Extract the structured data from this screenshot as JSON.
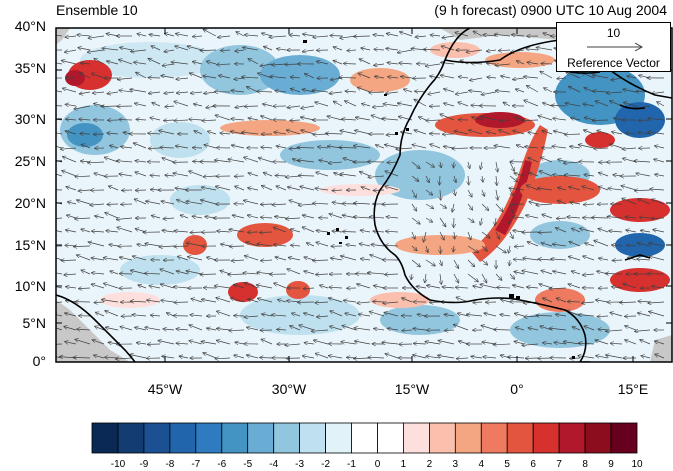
{
  "title_left": "Ensemble 10",
  "title_right": "(9 h forecast) 0900 UTC 10 Aug 2004",
  "lat_labels": [
    "40°N",
    "35°N",
    "30°N",
    "25°N",
    "20°N",
    "15°N",
    "10°N",
    "5°N",
    "0°"
  ],
  "lon_labels": [
    "45°W",
    "30°W",
    "15°W",
    "0°",
    "15°E"
  ],
  "reference_vector": {
    "magnitude": "10",
    "label": "Reference Vector"
  },
  "colorbar": {
    "labels": [
      "-10",
      "-9",
      "-8",
      "-7",
      "-6",
      "-5",
      "-4",
      "-3",
      "-2",
      "-1",
      "0",
      "1",
      "2",
      "3",
      "4",
      "5",
      "6",
      "7",
      "8",
      "9",
      "10"
    ],
    "colors": [
      "#0a2a55",
      "#123c72",
      "#1b5092",
      "#2166ac",
      "#2f7bbf",
      "#4393c3",
      "#6aadd4",
      "#92c5de",
      "#bfe0ee",
      "#e2f2f9",
      "#ffffff",
      "#ffffff",
      "#fde0dd",
      "#fbbfae",
      "#f4a582",
      "#ee7b5f",
      "#e4553f",
      "#d6302f",
      "#b2182b",
      "#8c0e1e",
      "#67001f"
    ]
  },
  "colors": {
    "coast": "#000000",
    "land_missing": "#c8c8c8",
    "arrow": "#404040"
  }
}
